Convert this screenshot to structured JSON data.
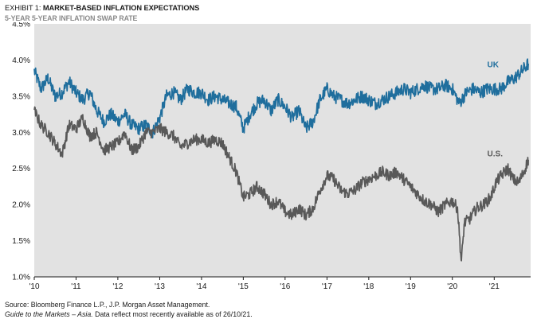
{
  "header": {
    "exhibit_label": "EXHIBIT 1:",
    "title": "MARKET-BASED INFLATION EXPECTATIONS",
    "subtitle": "5-YEAR 5-YEAR INFLATION SWAP RATE"
  },
  "footer": {
    "source": "Source: Bloomberg Finance L.P., J.P. Morgan Asset Management.",
    "guide_italic": "Guide to the Markets – Asia.",
    "guide_rest": " Data reflect most recently available as of 26/10/21."
  },
  "colors": {
    "plot_background": "#e2e2e2",
    "uk": "#1f6e9d",
    "us": "#595959"
  },
  "chart_data": {
    "type": "line",
    "xlabel": "",
    "ylabel": "",
    "x_range": [
      "2010-01-01",
      "2021-11-15"
    ],
    "x_ticks": [
      "'10",
      "'11",
      "'12",
      "'13",
      "'14",
      "'15",
      "'16",
      "'17",
      "'18",
      "'19",
      "'20",
      "'21"
    ],
    "ylim": [
      1.0,
      4.5
    ],
    "y_ticks": [
      "1.0%",
      "1.5%",
      "2.0%",
      "2.5%",
      "3.0%",
      "3.5%",
      "4.0%",
      "4.5%"
    ],
    "grid": false,
    "series": [
      {
        "name": "UK",
        "points": [
          [
            "2010-01-01",
            3.85
          ],
          [
            "2010-03-01",
            3.6
          ],
          [
            "2010-05-01",
            3.75
          ],
          [
            "2010-07-01",
            3.5
          ],
          [
            "2010-09-01",
            3.55
          ],
          [
            "2010-11-01",
            3.7
          ],
          [
            "2011-01-01",
            3.55
          ],
          [
            "2011-03-01",
            3.45
          ],
          [
            "2011-05-01",
            3.55
          ],
          [
            "2011-07-01",
            3.3
          ],
          [
            "2011-09-01",
            3.15
          ],
          [
            "2011-11-01",
            3.25
          ],
          [
            "2012-01-01",
            3.15
          ],
          [
            "2012-03-01",
            3.25
          ],
          [
            "2012-05-01",
            3.1
          ],
          [
            "2012-07-01",
            3.05
          ],
          [
            "2012-09-01",
            3.1
          ],
          [
            "2012-11-01",
            3.0
          ],
          [
            "2013-01-01",
            3.2
          ],
          [
            "2013-03-01",
            3.5
          ],
          [
            "2013-05-01",
            3.55
          ],
          [
            "2013-07-01",
            3.45
          ],
          [
            "2013-09-01",
            3.6
          ],
          [
            "2013-11-01",
            3.55
          ],
          [
            "2014-01-01",
            3.55
          ],
          [
            "2014-03-01",
            3.45
          ],
          [
            "2014-05-01",
            3.5
          ],
          [
            "2014-07-01",
            3.45
          ],
          [
            "2014-09-01",
            3.4
          ],
          [
            "2014-11-01",
            3.35
          ],
          [
            "2015-01-01",
            3.05
          ],
          [
            "2015-03-01",
            3.25
          ],
          [
            "2015-05-01",
            3.4
          ],
          [
            "2015-07-01",
            3.45
          ],
          [
            "2015-09-01",
            3.3
          ],
          [
            "2015-11-01",
            3.45
          ],
          [
            "2016-01-01",
            3.35
          ],
          [
            "2016-03-01",
            3.2
          ],
          [
            "2016-05-01",
            3.3
          ],
          [
            "2016-07-01",
            3.05
          ],
          [
            "2016-09-01",
            3.15
          ],
          [
            "2016-11-01",
            3.45
          ],
          [
            "2017-01-01",
            3.6
          ],
          [
            "2017-03-01",
            3.5
          ],
          [
            "2017-05-01",
            3.45
          ],
          [
            "2017-07-01",
            3.4
          ],
          [
            "2017-09-01",
            3.45
          ],
          [
            "2017-11-01",
            3.5
          ],
          [
            "2018-01-01",
            3.45
          ],
          [
            "2018-03-01",
            3.4
          ],
          [
            "2018-05-01",
            3.45
          ],
          [
            "2018-07-01",
            3.5
          ],
          [
            "2018-09-01",
            3.55
          ],
          [
            "2018-11-01",
            3.6
          ],
          [
            "2019-01-01",
            3.55
          ],
          [
            "2019-03-01",
            3.6
          ],
          [
            "2019-05-01",
            3.65
          ],
          [
            "2019-07-01",
            3.6
          ],
          [
            "2019-09-01",
            3.6
          ],
          [
            "2019-11-01",
            3.65
          ],
          [
            "2020-01-01",
            3.6
          ],
          [
            "2020-03-01",
            3.4
          ],
          [
            "2020-05-01",
            3.55
          ],
          [
            "2020-07-01",
            3.6
          ],
          [
            "2020-09-01",
            3.55
          ],
          [
            "2020-11-01",
            3.6
          ],
          [
            "2021-01-01",
            3.6
          ],
          [
            "2021-03-01",
            3.6
          ],
          [
            "2021-05-01",
            3.7
          ],
          [
            "2021-07-01",
            3.75
          ],
          [
            "2021-09-01",
            3.85
          ],
          [
            "2021-10-26",
            3.95
          ]
        ]
      },
      {
        "name": "U.S.",
        "points": [
          [
            "2010-01-01",
            3.3
          ],
          [
            "2010-03-01",
            3.1
          ],
          [
            "2010-05-01",
            3.0
          ],
          [
            "2010-07-01",
            2.85
          ],
          [
            "2010-09-01",
            2.7
          ],
          [
            "2010-11-01",
            3.1
          ],
          [
            "2011-01-01",
            3.05
          ],
          [
            "2011-03-01",
            3.2
          ],
          [
            "2011-05-01",
            2.95
          ],
          [
            "2011-07-01",
            3.0
          ],
          [
            "2011-09-01",
            2.75
          ],
          [
            "2011-11-01",
            2.8
          ],
          [
            "2012-01-01",
            2.85
          ],
          [
            "2012-03-01",
            3.0
          ],
          [
            "2012-05-01",
            2.75
          ],
          [
            "2012-07-01",
            2.8
          ],
          [
            "2012-09-01",
            3.0
          ],
          [
            "2012-11-01",
            3.0
          ],
          [
            "2013-01-01",
            3.05
          ],
          [
            "2013-03-01",
            3.0
          ],
          [
            "2013-05-01",
            2.95
          ],
          [
            "2013-07-01",
            2.8
          ],
          [
            "2013-09-01",
            2.85
          ],
          [
            "2013-11-01",
            2.9
          ],
          [
            "2014-01-01",
            2.9
          ],
          [
            "2014-03-01",
            2.85
          ],
          [
            "2014-05-01",
            2.9
          ],
          [
            "2014-07-01",
            2.85
          ],
          [
            "2014-09-01",
            2.65
          ],
          [
            "2014-11-01",
            2.45
          ],
          [
            "2015-01-01",
            2.1
          ],
          [
            "2015-03-01",
            2.15
          ],
          [
            "2015-05-01",
            2.25
          ],
          [
            "2015-07-01",
            2.15
          ],
          [
            "2015-09-01",
            2.0
          ],
          [
            "2015-11-01",
            2.05
          ],
          [
            "2016-01-01",
            1.9
          ],
          [
            "2016-03-01",
            1.85
          ],
          [
            "2016-05-01",
            1.95
          ],
          [
            "2016-07-01",
            1.85
          ],
          [
            "2016-09-01",
            1.95
          ],
          [
            "2016-11-01",
            2.2
          ],
          [
            "2017-01-01",
            2.4
          ],
          [
            "2017-03-01",
            2.35
          ],
          [
            "2017-05-01",
            2.2
          ],
          [
            "2017-07-01",
            2.15
          ],
          [
            "2017-09-01",
            2.2
          ],
          [
            "2017-11-01",
            2.3
          ],
          [
            "2018-01-01",
            2.35
          ],
          [
            "2018-03-01",
            2.4
          ],
          [
            "2018-05-01",
            2.45
          ],
          [
            "2018-07-01",
            2.4
          ],
          [
            "2018-09-01",
            2.45
          ],
          [
            "2018-11-01",
            2.35
          ],
          [
            "2019-01-01",
            2.25
          ],
          [
            "2019-03-01",
            2.15
          ],
          [
            "2019-05-01",
            2.05
          ],
          [
            "2019-07-01",
            2.0
          ],
          [
            "2019-09-01",
            1.9
          ],
          [
            "2019-11-01",
            2.0
          ],
          [
            "2020-01-01",
            2.05
          ],
          [
            "2020-02-15",
            1.95
          ],
          [
            "2020-03-20",
            1.2
          ],
          [
            "2020-04-15",
            1.75
          ],
          [
            "2020-06-01",
            1.8
          ],
          [
            "2020-08-01",
            1.95
          ],
          [
            "2020-10-01",
            2.0
          ],
          [
            "2020-12-01",
            2.1
          ],
          [
            "2021-01-15",
            2.3
          ],
          [
            "2021-03-01",
            2.4
          ],
          [
            "2021-05-01",
            2.5
          ],
          [
            "2021-06-15",
            2.35
          ],
          [
            "2021-08-01",
            2.3
          ],
          [
            "2021-09-15",
            2.45
          ],
          [
            "2021-10-26",
            2.62
          ]
        ]
      }
    ],
    "annotations": [
      "UK",
      "U.S."
    ]
  }
}
